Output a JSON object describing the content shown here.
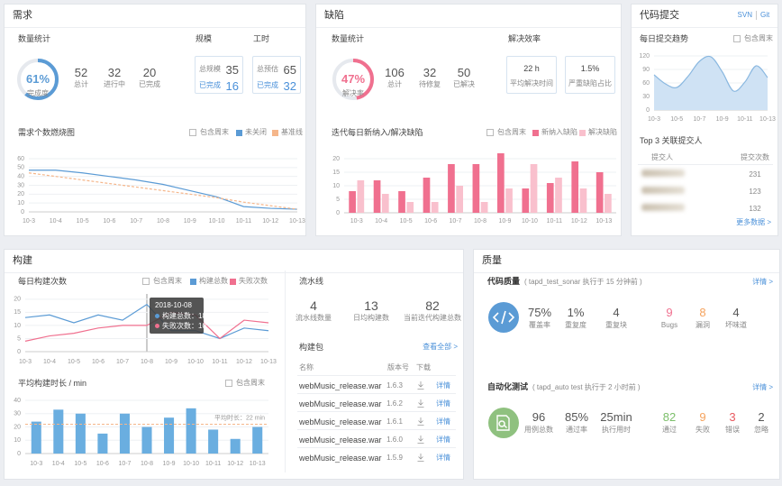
{
  "requirements": {
    "title": "需求",
    "count_title": "数量统计",
    "gauge": {
      "value": 61,
      "label": "61%",
      "caption": "完成度",
      "color": "#5b9bd5"
    },
    "stats": [
      {
        "value": 52,
        "label": "总计"
      },
      {
        "value": 32,
        "label": "进行中"
      },
      {
        "value": 20,
        "label": "已完成"
      }
    ],
    "scale": {
      "title": "规模",
      "items": [
        {
          "label": "总规模",
          "value": 35
        },
        {
          "label": "已完成",
          "value": 16
        }
      ]
    },
    "effort": {
      "title": "工时",
      "items": [
        {
          "label": "总预估",
          "value": 65
        },
        {
          "label": "已完成",
          "value": 32
        }
      ]
    },
    "chart": {
      "type": "line",
      "title": "需求个数燃烧图",
      "checkbox": "包含周末",
      "categories": [
        "10-3",
        "10-4",
        "10-5",
        "10-6",
        "10-7",
        "10-8",
        "10-9",
        "10-10",
        "10-11",
        "10-12",
        "10-13"
      ],
      "series": [
        {
          "name": "未关闭",
          "color": "#5b9bd5",
          "values": [
            47,
            47,
            44,
            40,
            36,
            31,
            24,
            17,
            6,
            4,
            3
          ]
        },
        {
          "name": "基准线",
          "color": "#f5b68a",
          "dashed": true,
          "values": [
            44,
            40,
            36,
            32,
            28,
            24,
            20,
            16,
            11,
            7,
            3
          ]
        }
      ],
      "ylim": [
        0,
        60
      ],
      "yticks": [
        0,
        10,
        20,
        30,
        40,
        50,
        60
      ],
      "grid": true
    }
  },
  "defects": {
    "title": "缺陷",
    "count_title": "数量统计",
    "gauge": {
      "value": 47,
      "label": "47%",
      "caption": "解决率",
      "color": "#f0708f"
    },
    "stats": [
      {
        "value": 106,
        "label": "总计"
      },
      {
        "value": 32,
        "label": "待修复"
      },
      {
        "value": 50,
        "label": "已解决"
      }
    ],
    "efficiency": {
      "title": "解决效率",
      "items": [
        {
          "value": "22 h",
          "label": "平均解决时间"
        },
        {
          "value": "1.5%",
          "label": "严重缺陷占比"
        }
      ]
    },
    "chart": {
      "type": "bar",
      "title": "迭代每日新纳入/解决缺陷",
      "checkbox": "包含周末",
      "categories": [
        "10-3",
        "10-4",
        "10-5",
        "10-6",
        "10-7",
        "10-8",
        "10-9",
        "10-10",
        "10-11",
        "10-12",
        "10-13"
      ],
      "series": [
        {
          "name": "新纳入缺陷",
          "color": "#f0708f",
          "values": [
            8,
            12,
            8,
            13,
            18,
            18,
            22,
            9,
            11,
            19,
            15
          ]
        },
        {
          "name": "解决缺陷",
          "color": "#f9c0cd",
          "values": [
            12,
            7,
            4,
            4,
            10,
            4,
            9,
            18,
            13,
            9,
            7
          ]
        }
      ],
      "ylim": [
        0,
        22
      ],
      "yticks": [
        0,
        5,
        10,
        15,
        20
      ],
      "grid": true
    }
  },
  "commits": {
    "title": "代码提交",
    "links": [
      "SVN",
      "Git"
    ],
    "chart": {
      "type": "area",
      "title": "每日提交趋势",
      "checkbox": "包含周末",
      "categories": [
        "10-3",
        null,
        "10-5",
        null,
        "10-7",
        null,
        "10-9",
        null,
        "10-11",
        null,
        "10-13"
      ],
      "values": [
        78,
        58,
        50,
        75,
        108,
        118,
        85,
        42,
        62,
        98,
        72
      ],
      "color": "#8ab8e0",
      "ylim": [
        0,
        120
      ],
      "yticks": [
        0,
        30,
        60,
        90,
        120
      ],
      "grid": true
    },
    "top": {
      "title": "Top 3 关联提交人",
      "header": [
        "提交人",
        "提交次数"
      ],
      "counts": [
        231,
        123,
        132
      ],
      "more": "更多数据 >"
    }
  },
  "builds": {
    "title": "构建",
    "daily": {
      "type": "line",
      "title": "每日构建次数",
      "checkbox": "包含周末",
      "categories": [
        "10-3",
        "10-4",
        "10-5",
        "10-6",
        "10-7",
        "10-8",
        "10-9",
        "10-10",
        "10-11",
        "10-12",
        "10-13"
      ],
      "series": [
        {
          "name": "构建总数",
          "color": "#5b9bd5",
          "values": [
            13,
            14,
            11,
            14,
            12,
            18,
            8,
            8,
            5,
            9,
            8
          ]
        },
        {
          "name": "失败次数",
          "color": "#f0708f",
          "values": [
            4,
            6,
            7,
            9,
            10,
            10,
            15,
            14,
            5,
            12,
            11
          ]
        }
      ],
      "ylim": [
        0,
        22
      ],
      "yticks": [
        0,
        5,
        10,
        15,
        20
      ],
      "grid": true,
      "tooltip": {
        "title": "2018-10-08",
        "lines": [
          "构建总数：18",
          "失败次数：10"
        ]
      }
    },
    "duration": {
      "type": "bar",
      "title": "平均构建时长 / min",
      "checkbox": "包含周末",
      "categories": [
        "10-3",
        "10-4",
        "10-5",
        "10-6",
        "10-7",
        "10-8",
        "10-9",
        "10-10",
        "10-11",
        "10-12",
        "10-13"
      ],
      "values": [
        24,
        33,
        30,
        15,
        30,
        20,
        27,
        34,
        18,
        11,
        20
      ],
      "color": "#6aaee0",
      "ylim": [
        0,
        40
      ],
      "yticks": [
        0,
        10,
        20,
        30,
        40
      ],
      "grid": true,
      "avg_line": {
        "value": 22,
        "label": "平均时长：22 min",
        "color": "#f5b68a"
      }
    },
    "pipeline": {
      "title": "流水线",
      "stats": [
        {
          "value": 4,
          "label": "流水线数量"
        },
        {
          "value": 13,
          "label": "日均构建数"
        },
        {
          "value": 82,
          "label": "当前迭代构建总数"
        }
      ]
    },
    "packages": {
      "title": "构建包",
      "more": "查看全部 >",
      "header": [
        "名称",
        "版本号",
        "下载"
      ],
      "rows": [
        [
          "webMusic_release.war",
          "1.6.3",
          "详情"
        ],
        [
          "webMusic_release.war",
          "1.6.2",
          "详情"
        ],
        [
          "webMusic_release.war",
          "1.6.1",
          "详情"
        ],
        [
          "webMusic_release.war",
          "1.6.0",
          "详情"
        ],
        [
          "webMusic_release.war",
          "1.5.9",
          "详情"
        ]
      ]
    }
  },
  "quality": {
    "title": "质量",
    "code": {
      "title": "代码质量",
      "note": "( tapd_test_sonar 执行于 15 分钟前 )",
      "more": "详情 >",
      "icon_color": "#5b9bd5",
      "stats": [
        {
          "value": "75%",
          "label": "覆盖率"
        },
        {
          "value": "1%",
          "label": "重复度"
        },
        {
          "value": 4,
          "label": "重复块"
        },
        {
          "value": 9,
          "label": "Bugs",
          "color": "#f0708f"
        },
        {
          "value": 8,
          "label": "漏洞",
          "color": "#f5a25d"
        },
        {
          "value": 4,
          "label": "坏味道"
        }
      ]
    },
    "test": {
      "title": "自动化测试",
      "note": "( tapd_auto test 执行于 2 小时前 )",
      "more": "详情 >",
      "icon_color": "#8fc17f",
      "stats": [
        {
          "value": 96,
          "label": "用例总数"
        },
        {
          "value": "85%",
          "label": "通过率"
        },
        {
          "value": "25min",
          "label": "执行用时"
        },
        {
          "value": 82,
          "label": "通过",
          "color": "#7cbf6a"
        },
        {
          "value": 9,
          "label": "失败",
          "color": "#f5a25d"
        },
        {
          "value": 3,
          "label": "错误",
          "color": "#e8595f"
        },
        {
          "value": 2,
          "label": "忽略"
        }
      ]
    }
  }
}
